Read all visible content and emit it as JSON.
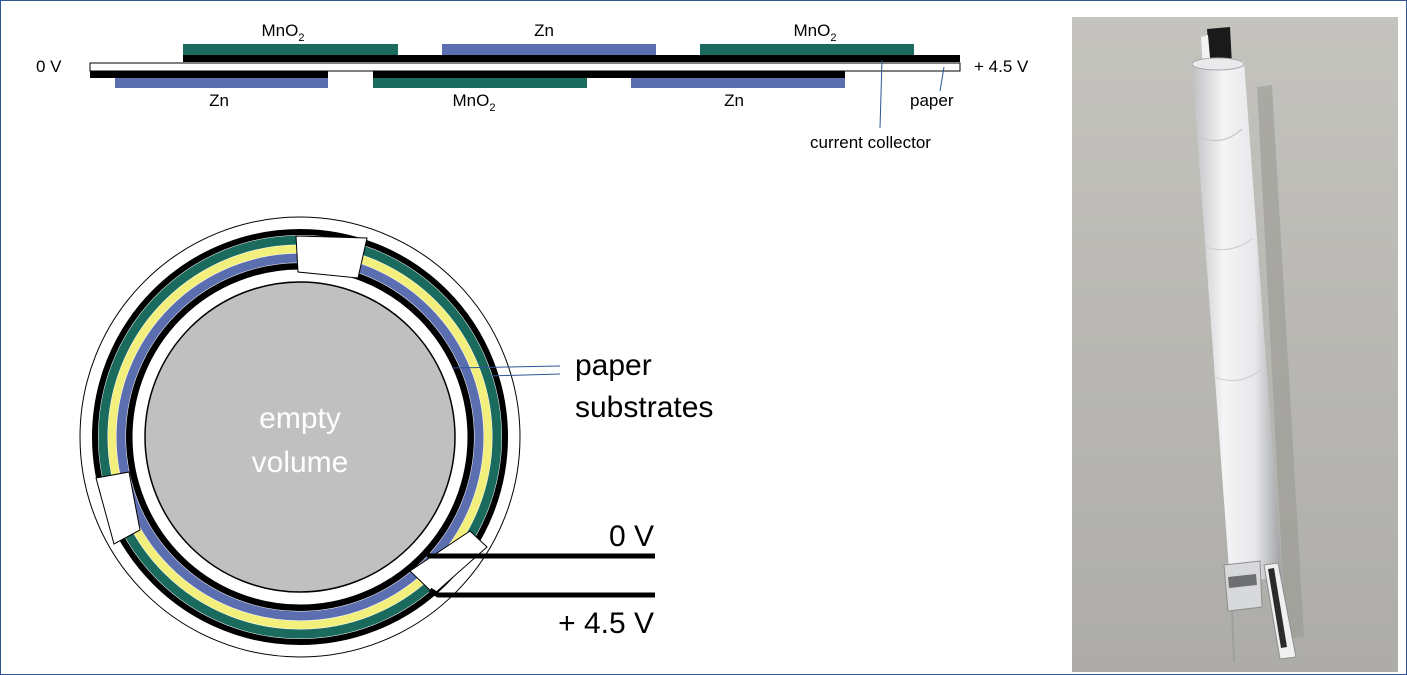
{
  "top_cross_section": {
    "left_voltage": "0 V",
    "right_voltage": "+ 4.5 V",
    "upper_layers": [
      {
        "material": "MnO",
        "subscript": "2"
      },
      {
        "material": "Zn",
        "subscript": ""
      },
      {
        "material": "MnO",
        "subscript": "2"
      }
    ],
    "lower_layers": [
      {
        "material": "Zn",
        "subscript": ""
      },
      {
        "material": "MnO",
        "subscript": "2"
      },
      {
        "material": "Zn",
        "subscript": ""
      }
    ],
    "paper_label": "paper",
    "collector_label": "current collector"
  },
  "rolled_view": {
    "center_line1": "empty",
    "center_line2": "volume",
    "substrate_line1": "paper",
    "substrate_line2": "substrates",
    "inner_voltage": "0 V",
    "outer_voltage": "+ 4.5 V"
  },
  "colors": {
    "mno2": "#1a6b5e",
    "zn": "#5b6eb0",
    "separator": "#f3ef7c",
    "collector": "#000000",
    "core": "#c0c0c0",
    "frame": "#2f5597"
  },
  "photo": {
    "subject": "rolled paper battery tube"
  }
}
